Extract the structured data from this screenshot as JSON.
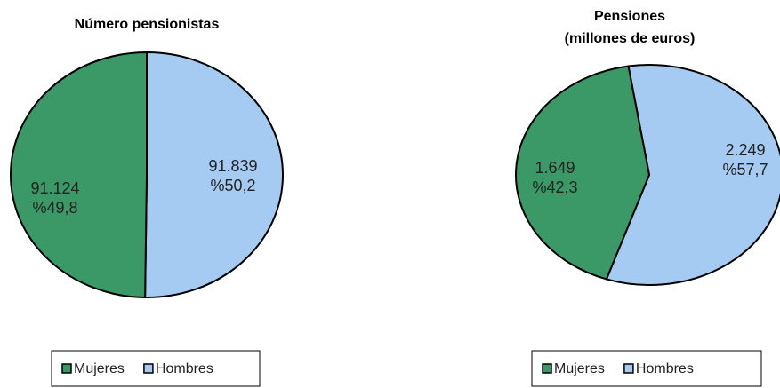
{
  "chart_data": [
    {
      "type": "pie",
      "title": "Número pensionistas",
      "categories": [
        "Mujeres",
        "Hombres"
      ],
      "colors": [
        "#3a9966",
        "#a6cbf2"
      ],
      "values": [
        91124,
        91839
      ],
      "value_labels": [
        "91.124",
        "91.839"
      ],
      "percents": [
        49.8,
        50.2
      ],
      "percent_labels": [
        "%49,8",
        "%50,2"
      ],
      "legend": "bottom"
    },
    {
      "type": "pie",
      "title": "Pensiones",
      "subtitle": "(millones  de euros)",
      "categories": [
        "Mujeres",
        "Hombres"
      ],
      "colors": [
        "#3a9966",
        "#a6cbf2"
      ],
      "values": [
        1649,
        2249
      ],
      "value_labels": [
        "1.649",
        "2.249"
      ],
      "percents": [
        42.3,
        57.7
      ],
      "percent_labels": [
        "%42,3",
        "%57,7"
      ],
      "legend": "bottom"
    }
  ]
}
